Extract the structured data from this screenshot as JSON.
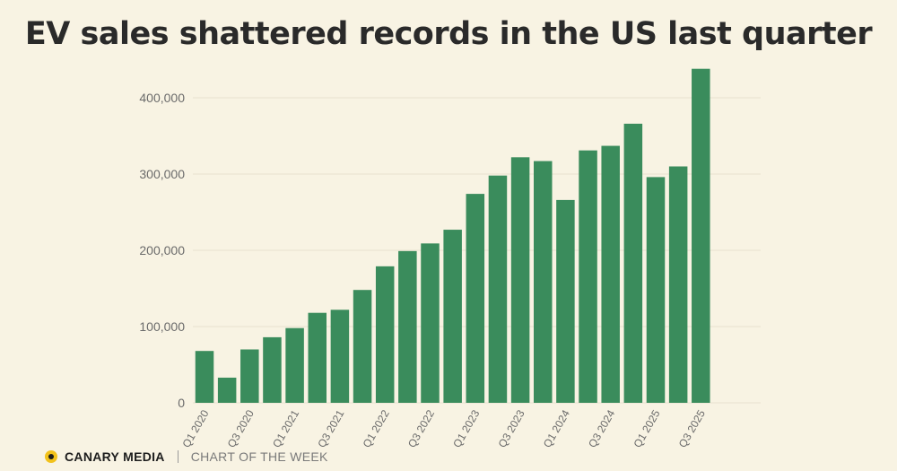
{
  "title": "EV sales shattered records in the US last quarter",
  "footer": {
    "brand": "CANARY MEDIA",
    "tagline": "CHART OF THE WEEK",
    "accent": "#f2c21c"
  },
  "chart_data": {
    "type": "bar",
    "title": "EV sales shattered records in the US last quarter",
    "xlabel": "",
    "ylabel": "",
    "ylim": [
      0,
      440000
    ],
    "yticks": [
      0,
      100000,
      200000,
      300000,
      400000
    ],
    "ytick_labels": [
      "0",
      "100,000",
      "200,000",
      "300,000",
      "400,000"
    ],
    "grid": true,
    "bar_color": "#3a8c5c",
    "categories": [
      "Q1 2020",
      "Q2 2020",
      "Q3 2020",
      "Q4 2020",
      "Q1 2021",
      "Q2 2021",
      "Q3 2021",
      "Q4 2021",
      "Q1 2022",
      "Q2 2022",
      "Q3 2022",
      "Q4 2022",
      "Q1 2023",
      "Q2 2023",
      "Q3 2023",
      "Q4 2023",
      "Q1 2024",
      "Q2 2024",
      "Q3 2024",
      "Q4 2024",
      "Q1 2025",
      "Q2 2025",
      "Q3 2025"
    ],
    "shown_tick_labels": [
      "Q1 2020",
      "Q3 2020",
      "Q1 2021",
      "Q3 2021",
      "Q1 2022",
      "Q3 2022",
      "Q1 2023",
      "Q3 2023",
      "Q1 2024",
      "Q3 2024",
      "Q1 2025",
      "Q3 2025"
    ],
    "values": [
      68000,
      33000,
      70000,
      86000,
      98000,
      118000,
      122000,
      148000,
      179000,
      199000,
      209000,
      227000,
      274000,
      298000,
      322000,
      317000,
      266000,
      331000,
      337000,
      366000,
      296000,
      310000,
      438000
    ]
  }
}
